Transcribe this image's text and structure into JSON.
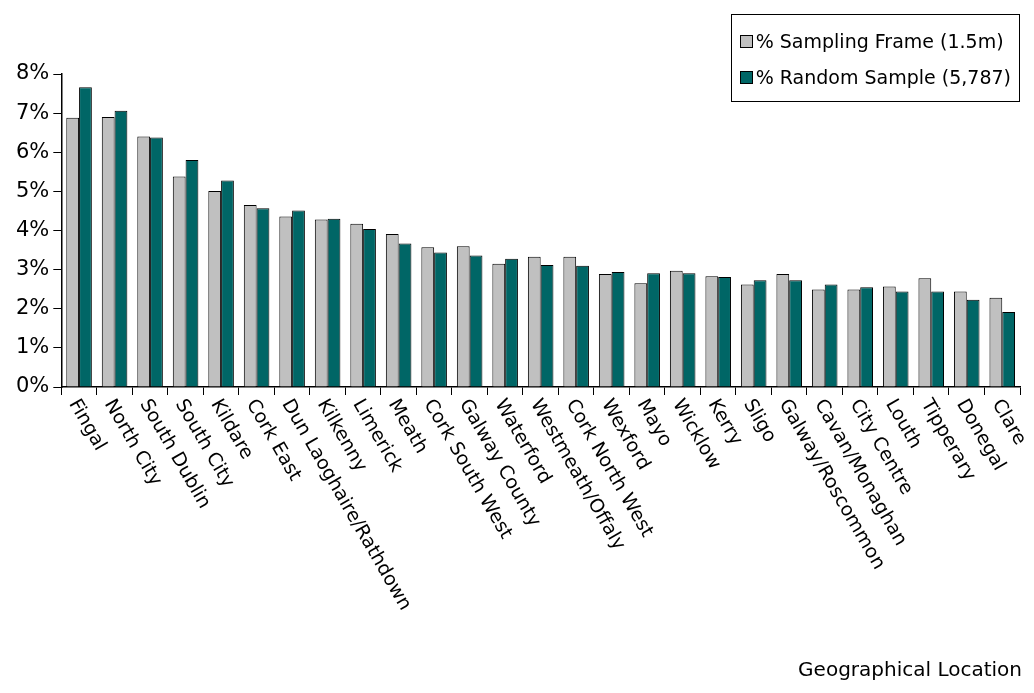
{
  "chart_data": {
    "type": "bar",
    "xlabel": "Geographical Location",
    "categories": [
      "Fingal",
      "North City",
      "South Dublin",
      "South City",
      "Kildare",
      "Cork East",
      "Dun Laoghaire/Rathdown",
      "Kilkenny",
      "Limerick",
      "Meath",
      "Cork South West",
      "Galway County",
      "Waterford",
      "Westmeath/Offaly",
      "Cork North West",
      "Wexford",
      "Mayo",
      "Wicklow",
      "Kerry",
      "Sligo",
      "Galway/Roscommon",
      "Cavan/Monaghan",
      "City Centre",
      "Louth",
      "Tipperary",
      "Donegal",
      "Clare"
    ],
    "series": [
      {
        "name": "% Sampling Frame (1.5m)",
        "color": "#c0c0c0",
        "values": [
          6.88,
          6.9,
          6.4,
          5.38,
          5.01,
          4.65,
          4.36,
          4.28,
          4.17,
          3.91,
          3.57,
          3.6,
          3.15,
          3.33,
          3.33,
          2.89,
          2.65,
          2.97,
          2.83,
          2.62,
          2.89,
          2.49,
          2.49,
          2.57,
          2.78,
          2.44,
          2.28
        ]
      },
      {
        "name": "% Random Sample (5,787)",
        "color": "#006666",
        "values": [
          7.66,
          7.06,
          6.38,
          5.8,
          5.28,
          4.57,
          4.51,
          4.3,
          4.04,
          3.67,
          3.44,
          3.36,
          3.28,
          3.12,
          3.1,
          2.94,
          2.91,
          2.91,
          2.81,
          2.73,
          2.73,
          2.62,
          2.55,
          2.44,
          2.44,
          2.23,
          1.92
        ]
      }
    ],
    "ylim": [
      0,
      8
    ],
    "yticks": [
      {
        "value": 0,
        "label": "0%"
      },
      {
        "value": 1,
        "label": "1%"
      },
      {
        "value": 2,
        "label": "2%"
      },
      {
        "value": 3,
        "label": "3%"
      },
      {
        "value": 4,
        "label": "4%"
      },
      {
        "value": 5,
        "label": "5%"
      },
      {
        "value": 6,
        "label": "6%"
      },
      {
        "value": 7,
        "label": "7%"
      },
      {
        "value": 8,
        "label": "8%"
      }
    ],
    "grid": false,
    "legend": "top right"
  }
}
